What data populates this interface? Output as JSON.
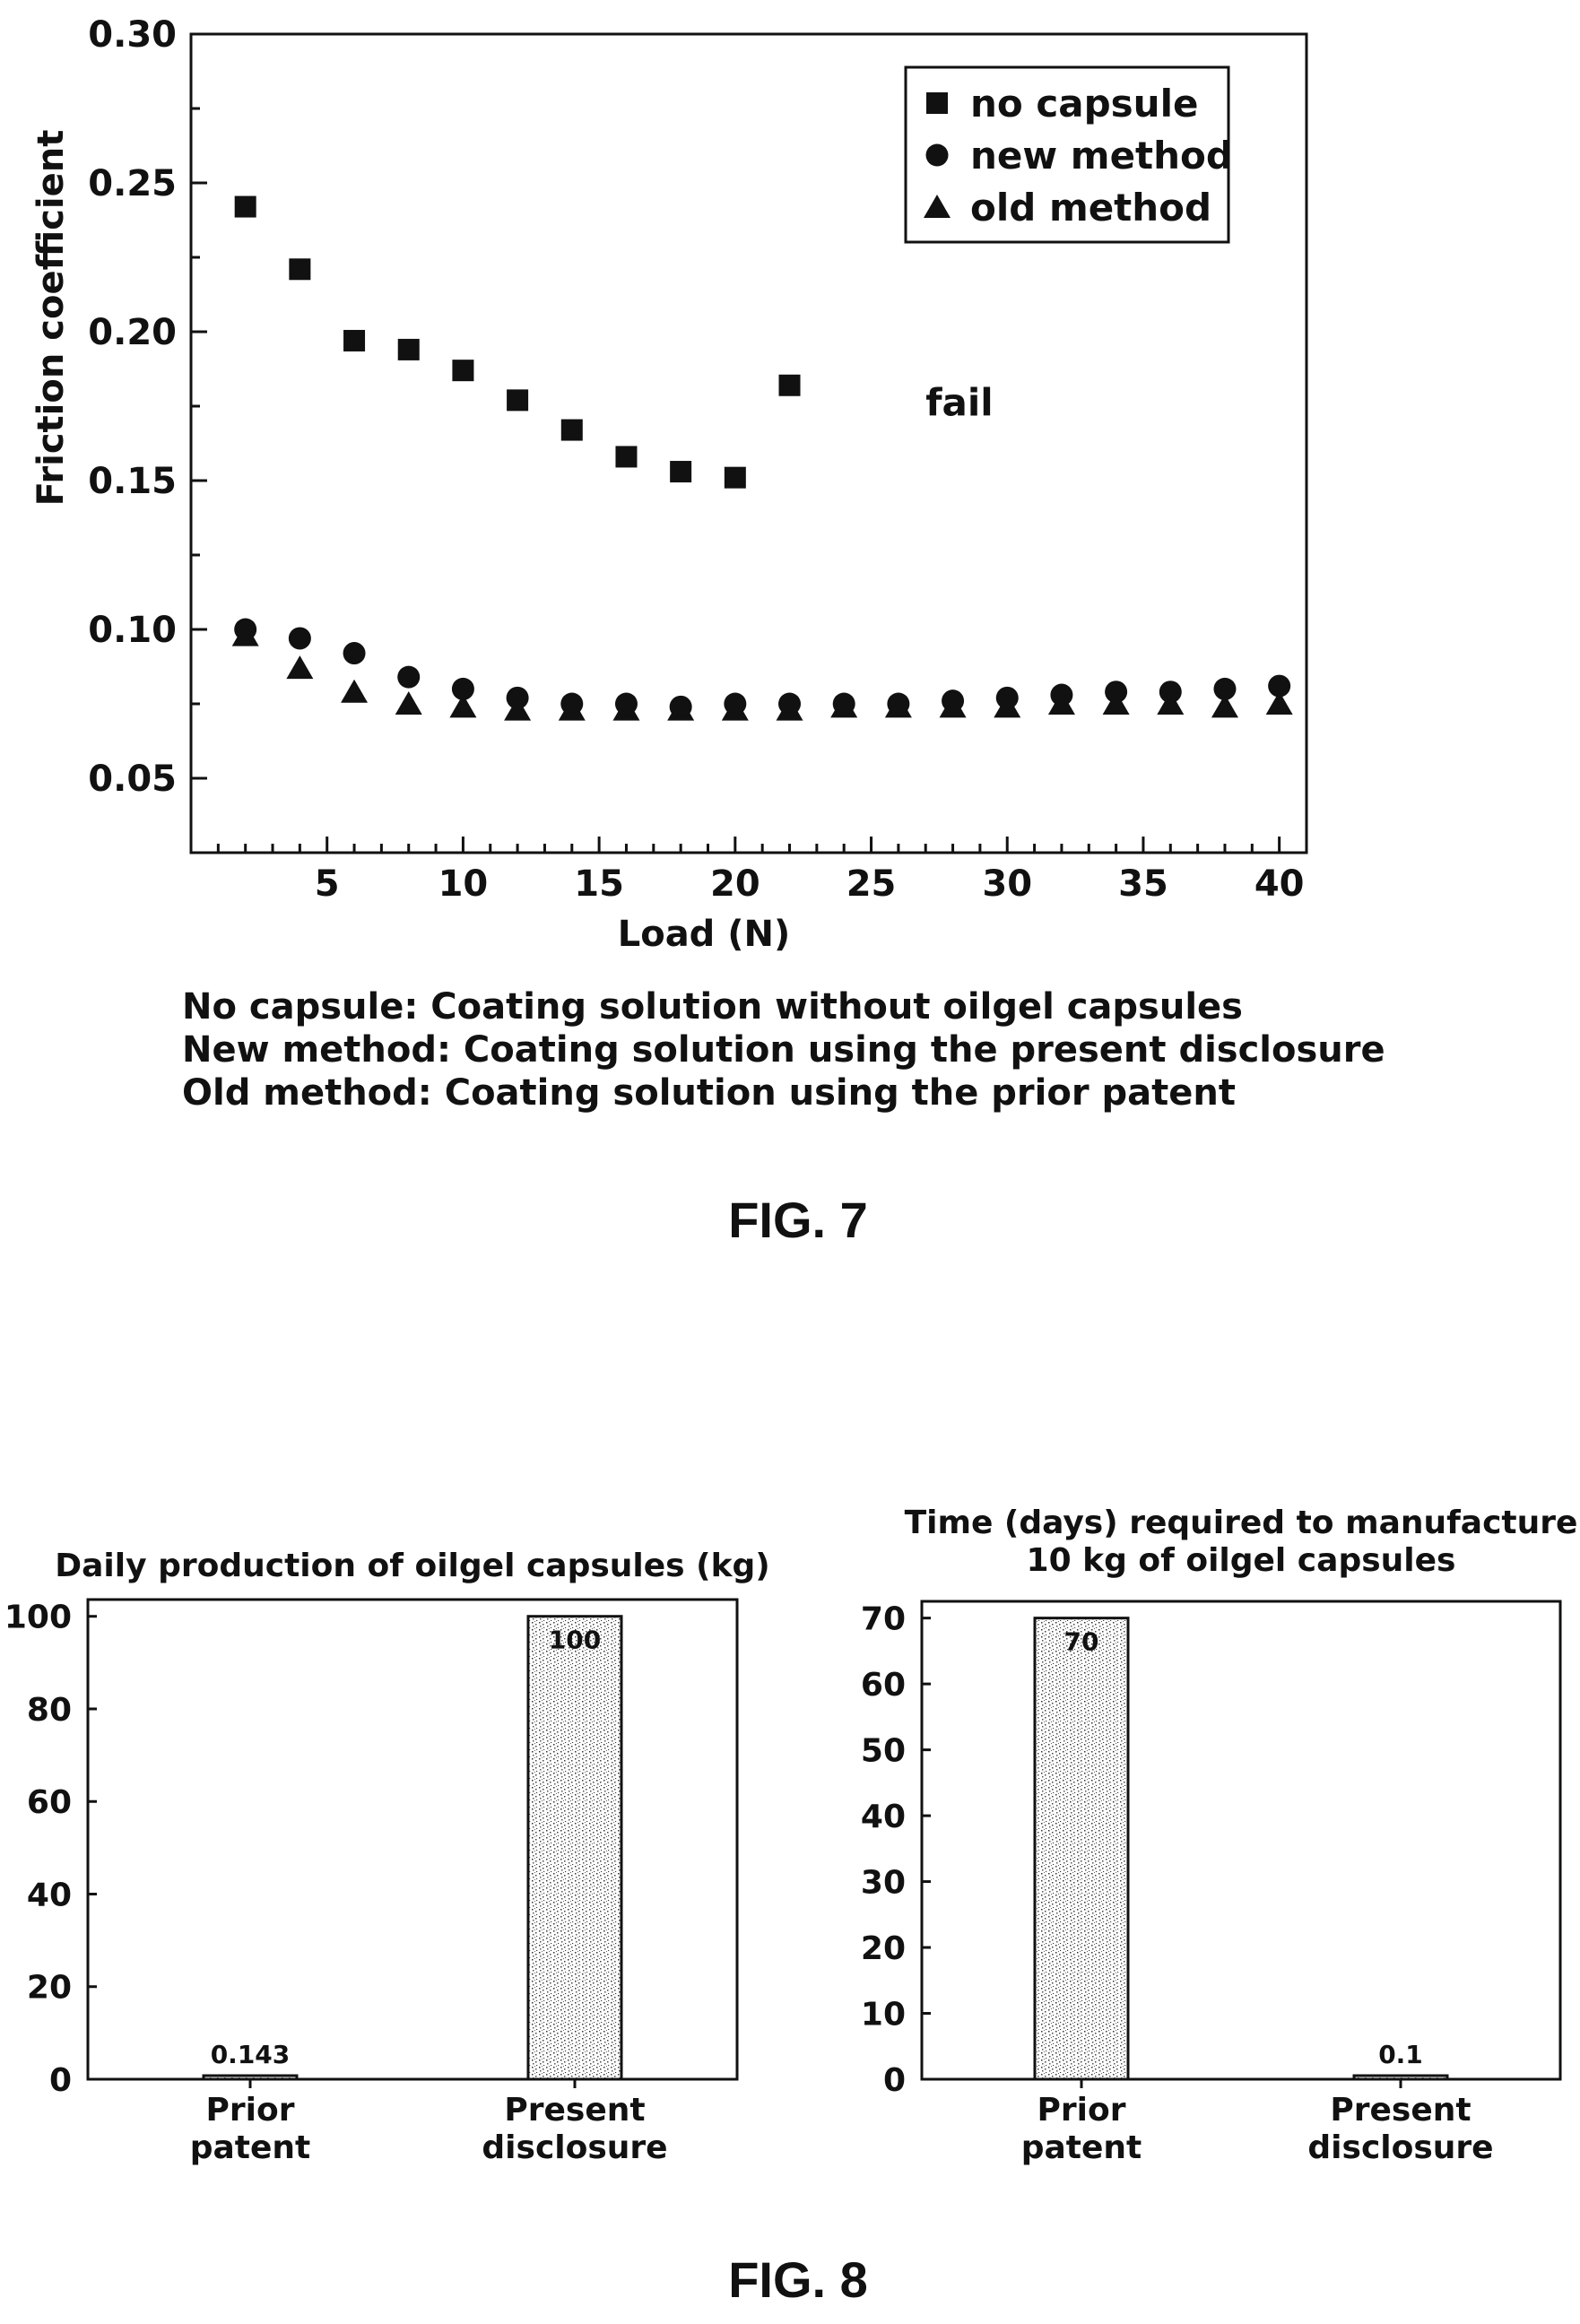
{
  "figures": {
    "fig7_caption": "FIG. 7",
    "fig8_caption": "FIG. 8"
  },
  "fig7_notes": [
    "No capsule: Coating solution without oilgel capsules",
    "New method: Coating solution using the present disclosure",
    "Old method: Coating solution using the prior patent"
  ],
  "chart_data": [
    {
      "type": "scatter",
      "title": "",
      "xlabel": "Load (N)",
      "ylabel": "Friction coefficient",
      "xlim": [
        0,
        41
      ],
      "ylim": [
        0.025,
        0.3
      ],
      "x_ticks": [
        5,
        10,
        15,
        20,
        25,
        30,
        35,
        40
      ],
      "y_ticks": [
        0.05,
        0.1,
        0.15,
        0.2,
        0.25,
        0.3
      ],
      "x_tick_labels": [
        "5",
        "10",
        "15",
        "20",
        "25",
        "30",
        "35",
        "40"
      ],
      "y_tick_labels": [
        "0.05",
        "0.10",
        "0.15",
        "0.20",
        "0.25",
        "0.30"
      ],
      "legend_position": "top-right",
      "annotation": "fail",
      "series": [
        {
          "name": "no capsule",
          "marker": "square",
          "x": [
            2,
            4,
            6,
            8,
            10,
            12,
            14,
            16,
            18,
            20,
            22
          ],
          "y": [
            0.242,
            0.221,
            0.197,
            0.194,
            0.187,
            0.177,
            0.167,
            0.158,
            0.153,
            0.151,
            0.182
          ]
        },
        {
          "name": "new method",
          "marker": "circle",
          "x": [
            2,
            4,
            6,
            8,
            10,
            12,
            14,
            16,
            18,
            20,
            22,
            24,
            26,
            28,
            30,
            32,
            34,
            36,
            38,
            40
          ],
          "y": [
            0.1,
            0.097,
            0.092,
            0.084,
            0.08,
            0.077,
            0.075,
            0.075,
            0.074,
            0.075,
            0.075,
            0.075,
            0.075,
            0.076,
            0.077,
            0.078,
            0.079,
            0.079,
            0.08,
            0.081
          ]
        },
        {
          "name": "old method",
          "marker": "triangle",
          "x": [
            2,
            4,
            6,
            8,
            10,
            12,
            14,
            16,
            18,
            20,
            22,
            24,
            26,
            28,
            30,
            32,
            34,
            36,
            38,
            40
          ],
          "y": [
            0.098,
            0.087,
            0.079,
            0.075,
            0.074,
            0.073,
            0.073,
            0.073,
            0.073,
            0.073,
            0.073,
            0.074,
            0.074,
            0.074,
            0.074,
            0.075,
            0.075,
            0.075,
            0.074,
            0.075
          ]
        }
      ]
    },
    {
      "type": "bar",
      "title": "Daily production of oilgel capsules (kg)",
      "categories": [
        [
          "Prior",
          "patent"
        ],
        [
          "Present",
          "disclosure"
        ]
      ],
      "values": [
        0.143,
        100
      ],
      "value_labels": [
        "0.143",
        "100"
      ],
      "ylim": [
        0,
        100
      ],
      "y_ticks": [
        0,
        20,
        40,
        60,
        80,
        100
      ],
      "y_tick_labels": [
        "0",
        "20",
        "40",
        "60",
        "80",
        "100"
      ]
    },
    {
      "type": "bar",
      "title": [
        "Time (days) required to manufacture",
        "10 kg of oilgel capsules"
      ],
      "categories": [
        [
          "Prior",
          "patent"
        ],
        [
          "Present",
          "disclosure"
        ]
      ],
      "values": [
        70,
        0.1
      ],
      "value_labels": [
        "70",
        "0.1"
      ],
      "ylim": [
        0,
        70
      ],
      "y_ticks": [
        0,
        10,
        20,
        30,
        40,
        50,
        60,
        70
      ],
      "y_tick_labels": [
        "0",
        "10",
        "20",
        "30",
        "40",
        "50",
        "60",
        "70"
      ]
    }
  ]
}
